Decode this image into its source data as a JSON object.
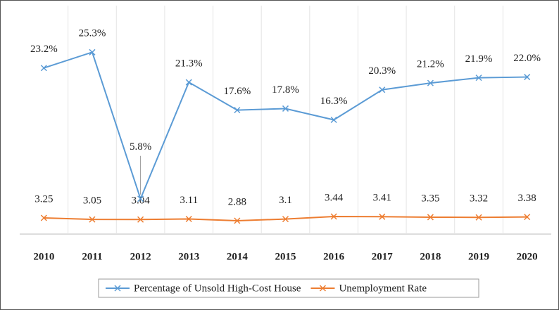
{
  "chart_data": {
    "type": "line",
    "categories": [
      "2010",
      "2011",
      "2012",
      "2013",
      "2014",
      "2015",
      "2016",
      "2017",
      "2018",
      "2019",
      "2020"
    ],
    "series": [
      {
        "name": "Percentage of Unsold High-Cost House",
        "color": "#5b9bd5",
        "values": [
          23.2,
          25.3,
          5.8,
          21.3,
          17.6,
          17.8,
          16.3,
          20.3,
          21.2,
          21.9,
          22.0
        ],
        "value_labels": [
          "23.2%",
          "25.3%",
          "5.8%",
          "21.3%",
          "17.6%",
          "17.8%",
          "16.3%",
          "20.3%",
          "21.2%",
          "21.9%",
          "22.0%"
        ]
      },
      {
        "name": "Unemployment Rate",
        "color": "#ed7d31",
        "values": [
          3.25,
          3.05,
          3.04,
          3.11,
          2.88,
          3.1,
          3.44,
          3.41,
          3.35,
          3.32,
          3.38
        ]
      }
    ],
    "ylim": [
      1.1,
      31.5
    ],
    "legend": "bottom"
  }
}
